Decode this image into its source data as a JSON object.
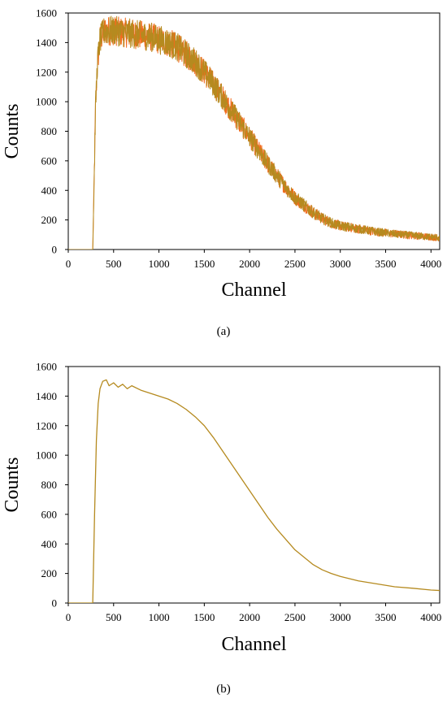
{
  "chart_data": [
    {
      "type": "line",
      "panel_label": "(a)",
      "xlabel": "Channel",
      "ylabel": "Counts",
      "xlim": [
        0,
        4096
      ],
      "ylim": [
        0,
        1600
      ],
      "xticks": [
        0,
        500,
        1000,
        1500,
        2000,
        2500,
        3000,
        3500,
        4000
      ],
      "yticks": [
        0,
        200,
        400,
        600,
        800,
        1000,
        1200,
        1400,
        1600
      ],
      "grid": false,
      "legend": "none",
      "series": [
        {
          "color": "#f26b1d",
          "noisy": true,
          "x": [
            0,
            270,
            290,
            300,
            320,
            350,
            400,
            500,
            600,
            700,
            800,
            900,
            1000,
            1100,
            1200,
            1300,
            1400,
            1500,
            1600,
            1700,
            1800,
            1900,
            2000,
            2100,
            2200,
            2300,
            2400,
            2500,
            2600,
            2700,
            2800,
            2900,
            3000,
            3200,
            3400,
            3600,
            3800,
            4000,
            4096
          ],
          "y": [
            0,
            0,
            600,
            950,
            1250,
            1420,
            1480,
            1480,
            1470,
            1460,
            1450,
            1440,
            1420,
            1400,
            1370,
            1320,
            1270,
            1200,
            1120,
            1030,
            940,
            850,
            760,
            670,
            580,
            500,
            420,
            350,
            300,
            250,
            210,
            180,
            160,
            140,
            120,
            105,
            95,
            85,
            80
          ]
        },
        {
          "color": "#b58a1f",
          "noisy": true,
          "x": [
            0,
            270,
            290,
            300,
            320,
            350,
            400,
            500,
            600,
            700,
            800,
            900,
            1000,
            1100,
            1200,
            1300,
            1400,
            1500,
            1600,
            1700,
            1800,
            1900,
            2000,
            2100,
            2200,
            2300,
            2400,
            2500,
            2600,
            2700,
            2800,
            2900,
            3000,
            3200,
            3400,
            3600,
            3800,
            4000,
            4096
          ],
          "y": [
            0,
            0,
            600,
            950,
            1250,
            1420,
            1480,
            1480,
            1470,
            1460,
            1450,
            1440,
            1420,
            1400,
            1370,
            1320,
            1270,
            1200,
            1120,
            1030,
            940,
            850,
            760,
            670,
            580,
            500,
            420,
            350,
            300,
            250,
            210,
            180,
            160,
            140,
            120,
            105,
            95,
            85,
            80
          ]
        }
      ]
    },
    {
      "type": "line",
      "panel_label": "(b)",
      "xlabel": "Channel",
      "ylabel": "Counts",
      "xlim": [
        0,
        4096
      ],
      "ylim": [
        0,
        1600
      ],
      "xticks": [
        0,
        500,
        1000,
        1500,
        2000,
        2500,
        3000,
        3500,
        4000
      ],
      "yticks": [
        0,
        200,
        400,
        600,
        800,
        1000,
        1200,
        1400,
        1600
      ],
      "grid": false,
      "legend": "none",
      "series": [
        {
          "color": "#b58a1f",
          "noisy": false,
          "x": [
            0,
            270,
            290,
            310,
            330,
            350,
            380,
            420,
            450,
            500,
            550,
            600,
            650,
            700,
            800,
            900,
            1000,
            1100,
            1200,
            1300,
            1400,
            1500,
            1600,
            1700,
            1800,
            1900,
            2000,
            2100,
            2200,
            2300,
            2400,
            2500,
            2600,
            2700,
            2800,
            2900,
            3000,
            3200,
            3400,
            3600,
            3800,
            4000,
            4096
          ],
          "y": [
            0,
            0,
            600,
            1100,
            1350,
            1450,
            1500,
            1510,
            1470,
            1490,
            1460,
            1480,
            1450,
            1470,
            1440,
            1420,
            1400,
            1380,
            1350,
            1310,
            1260,
            1200,
            1120,
            1030,
            940,
            850,
            760,
            670,
            580,
            500,
            430,
            360,
            310,
            260,
            225,
            200,
            180,
            150,
            130,
            110,
            100,
            88,
            85
          ]
        }
      ]
    }
  ]
}
